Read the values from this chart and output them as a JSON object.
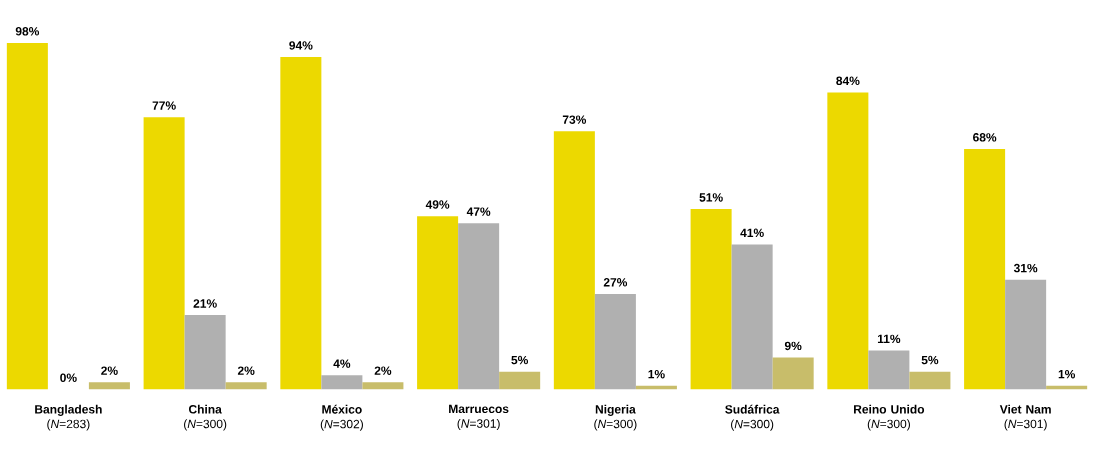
{
  "chart_data": {
    "type": "bar",
    "categories": [
      "**Bangladesh** (*N*=283)",
      "**China** (*N*=300)",
      "**México** (*N*=302)",
      "**Marruecos** (*N*=301)",
      "**Nigeria** (*N*=300)",
      "**Sudáfrica** (*N*=300)",
      "**Reino Unido** (*N*=300)",
      "**Viet Nam** (*N*=301)"
    ],
    "series": [
      {
        "color": "#ecd900",
        "values": [
          98,
          77,
          94,
          49,
          73,
          51,
          84,
          68
        ],
        "value_labels": [
          "98%",
          "77%",
          "94%",
          "49%",
          "73%",
          "51%",
          "84%",
          "68%"
        ]
      },
      {
        "color": "#b0b0b0",
        "values": [
          0,
          21,
          4,
          47,
          27,
          41,
          11,
          31
        ],
        "value_labels": [
          "0%",
          "21%",
          "4%",
          "47%",
          "27%",
          "41%",
          "11%",
          "31%"
        ]
      },
      {
        "color": "#c8bd6a",
        "values": [
          2,
          2,
          2,
          5,
          1,
          9,
          5,
          1
        ],
        "value_labels": [
          "2%",
          "2%",
          "2%",
          "5%",
          "1%",
          "9%",
          "5%",
          "1%"
        ]
      }
    ],
    "legend": false
  }
}
